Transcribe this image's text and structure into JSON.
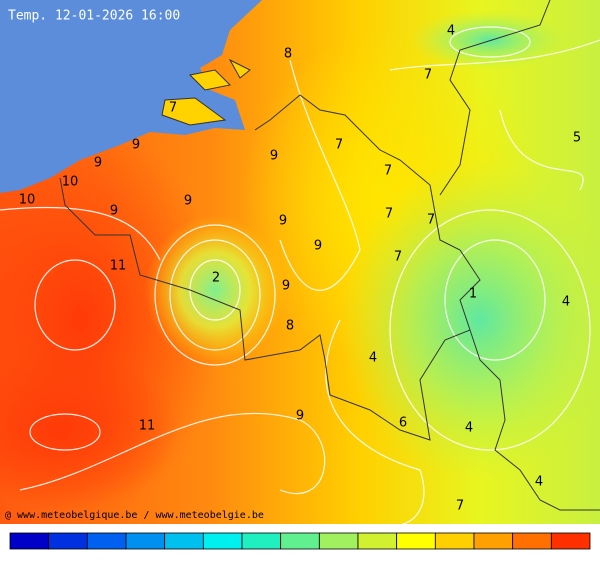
{
  "header": {
    "title": "Temp. 12-01-2026 16:00"
  },
  "labels": [
    4,
    8,
    7,
    7,
    5,
    9,
    7,
    9,
    9,
    7,
    10,
    10,
    9,
    9,
    7,
    9,
    7,
    9,
    7,
    11,
    2,
    9,
    1,
    4,
    8,
    4,
    9,
    6,
    11,
    4,
    4,
    7
  ],
  "footer": "@ www.meteobelgique.be / www.meteobelgie.be"
}
